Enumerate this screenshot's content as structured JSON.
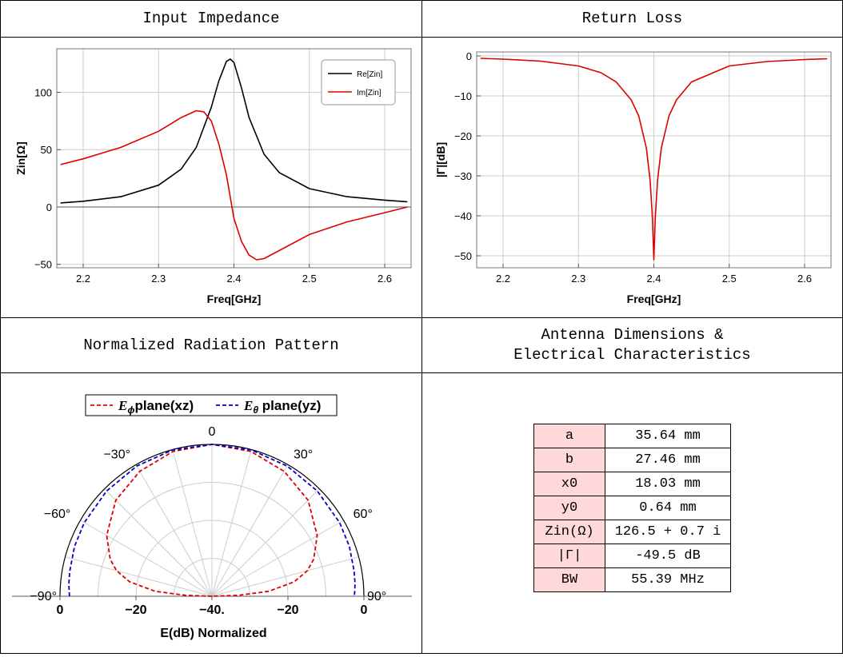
{
  "headers": {
    "impedance": "Input Impedance",
    "return_loss": "Return Loss",
    "radiation": "Normalized Radiation Pattern",
    "dims_line1": "Antenna Dimensions &",
    "dims_line2": "Electrical Characteristics"
  },
  "chart_data": [
    {
      "type": "line",
      "title": "Input Impedance",
      "xlabel": "Freq[GHz]",
      "ylabel": "Zin[Ω]",
      "xlim": [
        2.165,
        2.635
      ],
      "ylim": [
        -53,
        138
      ],
      "xticks": [
        2.2,
        2.3,
        2.4,
        2.5,
        2.6
      ],
      "xticklabels": [
        "2.2",
        "2.3",
        "2.4",
        "2.5",
        "2.6"
      ],
      "yticks": [
        -50,
        0,
        50,
        100
      ],
      "yticklabels": [
        "-50",
        "0",
        "50",
        "100"
      ],
      "grid": true,
      "legend": "top-right",
      "series": [
        {
          "name": "Re[Zin]",
          "color": "#000000",
          "x": [
            2.17,
            2.2,
            2.25,
            2.3,
            2.33,
            2.35,
            2.37,
            2.38,
            2.39,
            2.395,
            2.4,
            2.41,
            2.42,
            2.44,
            2.46,
            2.5,
            2.55,
            2.6,
            2.63
          ],
          "y": [
            3.5,
            5,
            9,
            19,
            33,
            52,
            87,
            110,
            127,
            129,
            126,
            104,
            78,
            46,
            30,
            16,
            9,
            6,
            4.5
          ]
        },
        {
          "name": "Im[Zin]",
          "color": "#dd0000",
          "x": [
            2.17,
            2.2,
            2.25,
            2.3,
            2.33,
            2.35,
            2.36,
            2.37,
            2.38,
            2.39,
            2.4,
            2.41,
            2.42,
            2.43,
            2.44,
            2.46,
            2.5,
            2.55,
            2.6,
            2.63
          ],
          "y": [
            37,
            42,
            52,
            66,
            78,
            84,
            83,
            75,
            55,
            28,
            -10,
            -30,
            -42,
            -46,
            -45,
            -38,
            -24,
            -13,
            -5,
            0
          ]
        }
      ]
    },
    {
      "type": "line",
      "title": "Return Loss",
      "xlabel": "Freq[GHz]",
      "ylabel": "|Γ|[dB]",
      "xlim": [
        2.165,
        2.635
      ],
      "ylim": [
        -53,
        1
      ],
      "xticks": [
        2.2,
        2.3,
        2.4,
        2.5,
        2.6
      ],
      "xticklabels": [
        "2.2",
        "2.3",
        "2.4",
        "2.5",
        "2.6"
      ],
      "yticks": [
        -50,
        -40,
        -30,
        -20,
        -10,
        0
      ],
      "yticklabels": [
        "-50",
        "-40",
        "-30",
        "-20",
        "-10",
        "0"
      ],
      "grid": true,
      "series": [
        {
          "name": "",
          "color": "#dd0000",
          "x": [
            2.17,
            2.2,
            2.25,
            2.3,
            2.33,
            2.35,
            2.37,
            2.38,
            2.39,
            2.395,
            2.398,
            2.4,
            2.402,
            2.405,
            2.41,
            2.42,
            2.43,
            2.45,
            2.5,
            2.55,
            2.6,
            2.63
          ],
          "y": [
            -0.6,
            -0.8,
            -1.3,
            -2.5,
            -4.2,
            -6.5,
            -11,
            -15,
            -23,
            -31,
            -40,
            -51,
            -40,
            -31,
            -23,
            -15,
            -11,
            -6.5,
            -2.5,
            -1.4,
            -0.9,
            -0.7
          ]
        }
      ]
    },
    {
      "type": "polar-line",
      "title": "Normalized Radiation Pattern",
      "xlabel": "E(dB) Normalized",
      "rlim": [
        -40,
        0
      ],
      "rings_db": [
        -10,
        -20,
        -30
      ],
      "spokes_deg": [
        -90,
        -75,
        -60,
        -45,
        -30,
        -15,
        0,
        15,
        30,
        45,
        60,
        75,
        90
      ],
      "angle_labels": [
        {
          "deg": -90,
          "text": "−90°"
        },
        {
          "deg": -60,
          "text": "−60°"
        },
        {
          "deg": -30,
          "text": "−30°"
        },
        {
          "deg": 0,
          "text": "0"
        },
        {
          "deg": 30,
          "text": "30°"
        },
        {
          "deg": 60,
          "text": "60°"
        },
        {
          "deg": 90,
          "text": "90°"
        }
      ],
      "base_ticks": [
        {
          "db": 0,
          "side": -1,
          "text": "0"
        },
        {
          "db": -20,
          "side": -1,
          "text": "−20"
        },
        {
          "db": -40,
          "side": 0,
          "text": "−40."
        },
        {
          "db": -20,
          "side": 1,
          "text": "−20"
        },
        {
          "db": 0,
          "side": 1,
          "text": "0"
        }
      ],
      "legend": "top",
      "series": [
        {
          "name_sym": "E",
          "name_sub": "ϕ",
          "name_rest": "plane(xz)",
          "color": "#dd0000",
          "theta_deg": [
            0,
            15,
            30,
            45,
            60,
            70,
            75,
            80,
            85,
            88,
            90
          ],
          "db": [
            0,
            -0.5,
            -2,
            -4.2,
            -8,
            -11.5,
            -14,
            -18,
            -25,
            -33,
            -40
          ]
        },
        {
          "name_sym": "E",
          "name_sub": "θ",
          "name_rest": " plane(yz)",
          "color": "#0000cc",
          "theta_deg": [
            0,
            15,
            30,
            45,
            60,
            70,
            80,
            85,
            88,
            90
          ],
          "db": [
            0,
            -0.1,
            -0.4,
            -0.8,
            -1.2,
            -1.5,
            -2,
            -2.2,
            -2.4,
            -2.5
          ]
        }
      ]
    }
  ],
  "dimensions": [
    {
      "key": "a",
      "value": "35.64 mm"
    },
    {
      "key": "b",
      "value": "27.46 mm"
    },
    {
      "key": "x0",
      "value": "18.03 mm"
    },
    {
      "key": "y0",
      "value": "0.64 mm"
    },
    {
      "key": "Zin(Ω)",
      "value": "126.5 + 0.7 i"
    },
    {
      "key": "|Γ|",
      "value": "-49.5 dB"
    },
    {
      "key": "BW",
      "value": "55.39 MHz"
    }
  ]
}
